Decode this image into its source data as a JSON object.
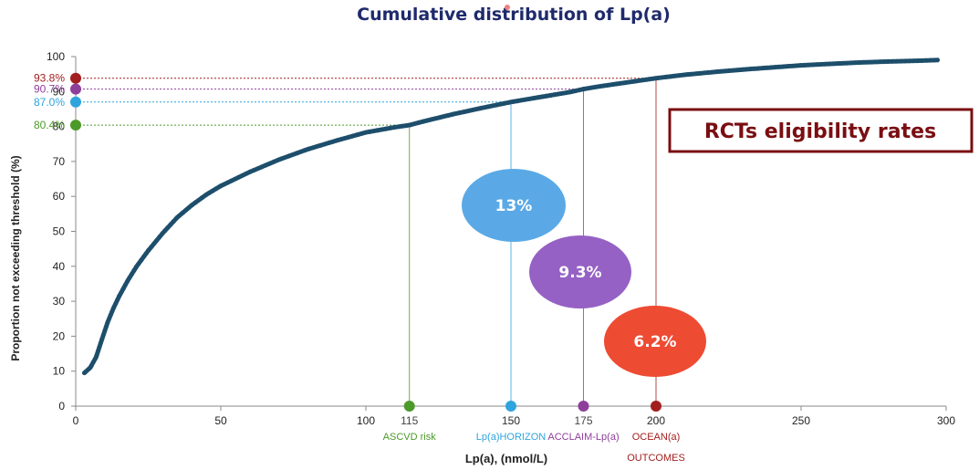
{
  "chart_data": {
    "type": "scatter",
    "title": "Cumulative distribution of Lp(a)",
    "xlabel": "Lp(a), (nmol/L)",
    "ylabel": "Proportion not exceeding threshold (%)",
    "xlim": [
      0,
      300
    ],
    "ylim": [
      0,
      100
    ],
    "x_ticks": [
      "0",
      "50",
      "100",
      "150",
      "200",
      "250",
      "300"
    ],
    "y_ticks": [
      "0",
      "10",
      "20",
      "30",
      "40",
      "50",
      "60",
      "70",
      "80",
      "90",
      "100"
    ],
    "curve_points": [
      [
        3,
        9.5
      ],
      [
        5,
        11
      ],
      [
        7,
        14
      ],
      [
        9,
        19
      ],
      [
        11,
        24
      ],
      [
        13,
        28
      ],
      [
        15,
        31.5
      ],
      [
        18,
        36
      ],
      [
        21,
        40
      ],
      [
        25,
        44.5
      ],
      [
        30,
        49.5
      ],
      [
        35,
        54
      ],
      [
        40,
        57.5
      ],
      [
        45,
        60.5
      ],
      [
        50,
        63
      ],
      [
        60,
        67
      ],
      [
        70,
        70.5
      ],
      [
        80,
        73.5
      ],
      [
        90,
        76
      ],
      [
        100,
        78.3
      ],
      [
        110,
        79.8
      ],
      [
        115,
        80.4
      ],
      [
        120,
        81.5
      ],
      [
        130,
        83.5
      ],
      [
        140,
        85.3
      ],
      [
        150,
        87.0
      ],
      [
        160,
        88.4
      ],
      [
        170,
        89.8
      ],
      [
        175,
        90.7
      ],
      [
        180,
        91.4
      ],
      [
        190,
        92.6
      ],
      [
        200,
        93.8
      ],
      [
        210,
        94.8
      ],
      [
        220,
        95.6
      ],
      [
        230,
        96.3
      ],
      [
        240,
        96.9
      ],
      [
        250,
        97.5
      ],
      [
        260,
        97.9
      ],
      [
        270,
        98.3
      ],
      [
        280,
        98.6
      ],
      [
        290,
        98.8
      ],
      [
        297,
        99
      ]
    ],
    "thresholds": [
      {
        "x": 115,
        "x_label": "115",
        "y_label": "80.4%",
        "trial": "ASCVD risk",
        "trial2": "",
        "color": "#4c9a2a",
        "y": 80.4
      },
      {
        "x": 150,
        "x_label": "150",
        "y_label": "87.0%",
        "trial": "Lp(a)HORIZON",
        "trial2": "",
        "color": "#2fa4dd",
        "y": 87.0
      },
      {
        "x": 175,
        "x_label": "175",
        "y_label": "90.7%",
        "trial": "ACCLAIM-Lp(a)",
        "trial2": "",
        "color": "#8e3f9a",
        "y": 90.7
      },
      {
        "x": 200,
        "x_label": "200",
        "y_label": "93.8%",
        "trial": "OCEAN(a)",
        "trial2": "OUTCOMES",
        "color": "#a31e1e",
        "y": 93.8
      }
    ],
    "bubbles": [
      {
        "label": "13%",
        "color": "#5aa9e6"
      },
      {
        "label": "9.3%",
        "color": "#9561c4"
      },
      {
        "label": "6.2%",
        "color": "#ee4b33"
      }
    ],
    "annotation_box": "RCTs eligibility rates",
    "curve_color": "#1d4e6b",
    "grid": false
  }
}
